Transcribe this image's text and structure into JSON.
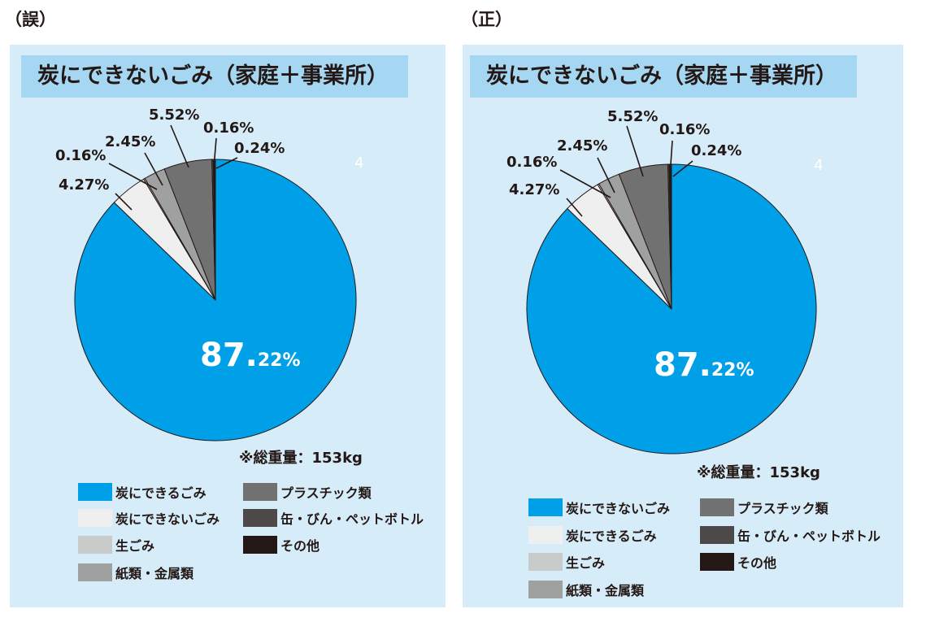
{
  "captions": {
    "wrong": "（誤）",
    "correct": "（正）"
  },
  "panels": [
    {
      "title": "炭にできないごみ（家庭＋事業所）",
      "total": "※総重量：153kg",
      "stray_mark": "4",
      "center_label": {
        "main": "87.",
        "sub": "22%"
      },
      "legend": [
        {
          "label": "炭にできるごみ",
          "color": "#00a0e9"
        },
        {
          "label": "炭にできないごみ",
          "color": "#efefef"
        },
        {
          "label": "生ごみ",
          "color": "#c9caca"
        },
        {
          "label": "紙類・金属類",
          "color": "#9fa0a0"
        },
        {
          "label": "プラスチック類",
          "color": "#727171"
        },
        {
          "label": "缶・びん・ペットボトル",
          "color": "#4c4948"
        },
        {
          "label": "その他",
          "color": "#231815"
        }
      ]
    },
    {
      "title": "炭にできないごみ（家庭＋事業所）",
      "total": "※総重量：153kg",
      "stray_mark": "4",
      "center_label": {
        "main": "87.",
        "sub": "22%"
      },
      "legend": [
        {
          "label": "炭にできないごみ",
          "color": "#00a0e9"
        },
        {
          "label": "炭にできるごみ",
          "color": "#efefef"
        },
        {
          "label": "生ごみ",
          "color": "#c9caca"
        },
        {
          "label": "紙類・金属類",
          "color": "#9fa0a0"
        },
        {
          "label": "プラスチック類",
          "color": "#727171"
        },
        {
          "label": "缶・びん・ペットボトル",
          "color": "#4c4948"
        },
        {
          "label": "その他",
          "color": "#231815"
        }
      ]
    }
  ],
  "chart_data": [
    {
      "type": "pie",
      "title": "炭にできないごみ（家庭＋事業所）",
      "categories": [
        "炭にできるごみ",
        "炭にできないごみ",
        "生ごみ",
        "紙類・金属類",
        "プラスチック類",
        "缶・びん・ペットボトル",
        "その他"
      ],
      "values": [
        87.22,
        4.27,
        0.16,
        2.45,
        5.52,
        0.16,
        0.24
      ],
      "value_labels": [
        "87.22%",
        "4.27%",
        "0.16%",
        "2.45%",
        "5.52%",
        "0.16%",
        "0.24%"
      ],
      "colors": [
        "#00a0e9",
        "#efefef",
        "#c9caca",
        "#9fa0a0",
        "#727171",
        "#4c4948",
        "#231815"
      ],
      "legend": "bottom"
    },
    {
      "type": "pie",
      "title": "炭にできないごみ（家庭＋事業所）",
      "categories": [
        "炭にできないごみ",
        "炭にできるごみ",
        "生ごみ",
        "紙類・金属類",
        "プラスチック類",
        "缶・びん・ペットボトル",
        "その他"
      ],
      "values": [
        87.22,
        4.27,
        0.16,
        2.45,
        5.52,
        0.16,
        0.24
      ],
      "value_labels": [
        "87.22%",
        "4.27%",
        "0.16%",
        "2.45%",
        "5.52%",
        "0.16%",
        "0.24%"
      ],
      "colors": [
        "#00a0e9",
        "#efefef",
        "#c9caca",
        "#9fa0a0",
        "#727171",
        "#4c4948",
        "#231815"
      ],
      "legend": "bottom"
    }
  ]
}
